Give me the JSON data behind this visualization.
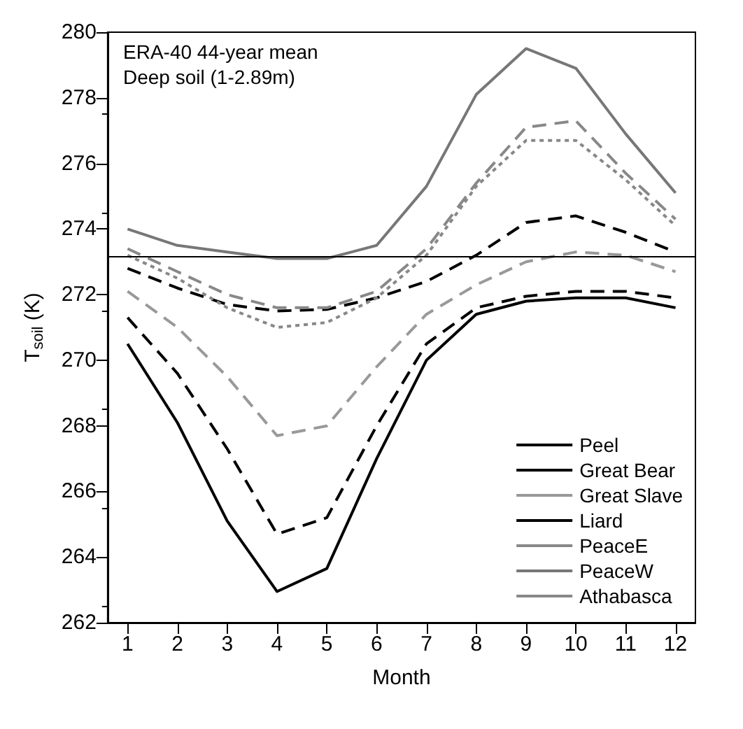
{
  "chart_data": {
    "type": "line",
    "xlabel": "Month",
    "ylabel": "T$_{soil}$ (K)",
    "annotations": [
      "ERA-40 44-year mean",
      "Deep soil (1-2.89m)"
    ],
    "x": [
      1,
      2,
      3,
      4,
      5,
      6,
      7,
      8,
      9,
      10,
      11,
      12
    ],
    "xlim": [
      0.6,
      12.4
    ],
    "xticks": [
      1,
      2,
      3,
      4,
      5,
      6,
      7,
      8,
      9,
      10,
      11,
      12
    ],
    "ylim": [
      262,
      280
    ],
    "yticks": [
      262,
      264,
      266,
      268,
      270,
      272,
      274,
      276,
      278,
      280
    ],
    "grid": false,
    "legend": "bottom right",
    "marker": "none",
    "ref_lines": [
      {
        "axis": "y",
        "value": 273.15,
        "color": "#000000",
        "line_style": "solid"
      }
    ],
    "series": [
      {
        "name": "Peel",
        "color": "#000000",
        "line_style": "solid",
        "values": [
          270.5,
          268.1,
          265.1,
          262.95,
          263.65,
          267.0,
          270.0,
          271.4,
          271.8,
          271.9,
          271.9,
          271.6
        ]
      },
      {
        "name": "Great Bear",
        "color": "#000000",
        "line_style": "dashed",
        "values": [
          271.3,
          269.6,
          267.3,
          264.7,
          265.2,
          268.0,
          270.5,
          271.6,
          271.95,
          272.1,
          272.1,
          271.9
        ]
      },
      {
        "name": "Great Slave",
        "color": "#999999",
        "line_style": "dashed",
        "values": [
          272.1,
          271.0,
          269.5,
          267.7,
          268.0,
          269.8,
          271.4,
          272.3,
          273.0,
          273.3,
          273.2,
          272.7
        ]
      },
      {
        "name": "Liard",
        "color": "#000000",
        "line_style": "dashed",
        "values": [
          272.8,
          272.2,
          271.7,
          271.5,
          271.55,
          271.9,
          272.4,
          273.2,
          274.2,
          274.4,
          273.9,
          273.3
        ]
      },
      {
        "name": "PeaceE",
        "color": "#888888",
        "line_style": "dashed",
        "values": [
          273.4,
          272.7,
          272.0,
          271.6,
          271.6,
          272.1,
          273.4,
          275.4,
          277.1,
          277.3,
          275.7,
          274.3
        ]
      },
      {
        "name": "PeaceW",
        "color": "#777777",
        "line_style": "solid",
        "values": [
          274.0,
          273.5,
          273.3,
          273.1,
          273.1,
          273.5,
          275.3,
          278.1,
          279.5,
          278.9,
          276.9,
          275.1
        ]
      },
      {
        "name": "Athabasca",
        "color": "#888888",
        "line_style": "dotted",
        "values": [
          273.2,
          272.5,
          271.6,
          271.0,
          271.15,
          271.9,
          273.2,
          275.3,
          276.7,
          276.7,
          275.5,
          274.1
        ]
      }
    ]
  }
}
